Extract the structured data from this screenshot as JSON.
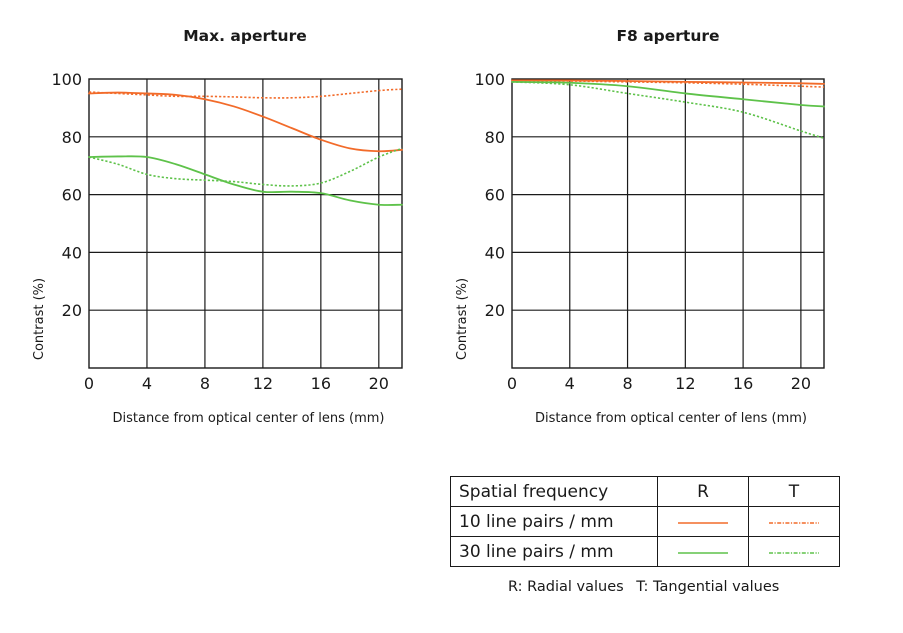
{
  "colors": {
    "orange": "#f26b2a",
    "green": "#5ec24a",
    "axis": "#1a1a1a"
  },
  "chart_data": [
    {
      "type": "line",
      "title": "Max. aperture",
      "xlabel": "Distance from optical center of lens (mm)",
      "ylabel": "Contrast (%)",
      "xlim": [
        0,
        21.6
      ],
      "ylim": [
        0,
        100
      ],
      "xticks": [
        0,
        4,
        8,
        12,
        16,
        20
      ],
      "yticks": [
        20,
        40,
        60,
        80,
        100
      ],
      "grid": true,
      "series": [
        {
          "name": "10 line pairs / mm R",
          "color": "orange",
          "dash": "solid",
          "x": [
            0,
            2,
            4,
            6,
            8,
            10,
            12,
            14,
            16,
            18,
            20,
            21.6
          ],
          "y": [
            95,
            95.3,
            95,
            94.5,
            93,
            90.5,
            87,
            83,
            79,
            76,
            75,
            75.5
          ]
        },
        {
          "name": "10 line pairs / mm T",
          "color": "orange",
          "dash": "dotted",
          "x": [
            0,
            2,
            4,
            6,
            8,
            10,
            12,
            14,
            16,
            18,
            20,
            21.6
          ],
          "y": [
            95.5,
            95,
            94.5,
            94,
            94,
            93.8,
            93.5,
            93.5,
            94,
            95,
            96,
            96.5
          ]
        },
        {
          "name": "30 line pairs / mm R",
          "color": "green",
          "dash": "solid",
          "x": [
            0,
            2,
            4,
            6,
            8,
            10,
            12,
            14,
            16,
            18,
            20,
            21.6
          ],
          "y": [
            73,
            73.2,
            73,
            70.5,
            67,
            63.5,
            61,
            61,
            60.5,
            58,
            56.5,
            56.5
          ]
        },
        {
          "name": "30 line pairs / mm T",
          "color": "green",
          "dash": "dotted",
          "x": [
            0,
            2,
            4,
            6,
            8,
            10,
            12,
            14,
            16,
            18,
            20,
            21.6
          ],
          "y": [
            73,
            70.5,
            67,
            65.5,
            65,
            64.5,
            63.5,
            63,
            64,
            68,
            73,
            76
          ]
        }
      ]
    },
    {
      "type": "line",
      "title": "F8 aperture",
      "xlabel": "Distance from optical center of lens (mm)",
      "ylabel": "Contrast (%)",
      "xlim": [
        0,
        21.6
      ],
      "ylim": [
        0,
        100
      ],
      "xticks": [
        0,
        4,
        8,
        12,
        16,
        20
      ],
      "yticks": [
        20,
        40,
        60,
        80,
        100
      ],
      "grid": true,
      "series": [
        {
          "name": "10 line pairs / mm R",
          "color": "orange",
          "dash": "solid",
          "x": [
            0,
            4,
            8,
            12,
            16,
            20,
            21.6
          ],
          "y": [
            99.5,
            99.5,
            99.3,
            99,
            98.8,
            98.5,
            98.3
          ]
        },
        {
          "name": "10 line pairs / mm T",
          "color": "orange",
          "dash": "dotted",
          "x": [
            0,
            4,
            8,
            12,
            16,
            20,
            21.6
          ],
          "y": [
            99.5,
            99.3,
            99,
            98.7,
            98.2,
            97.5,
            97.2
          ]
        },
        {
          "name": "30 line pairs / mm R",
          "color": "green",
          "dash": "solid",
          "x": [
            0,
            4,
            8,
            12,
            16,
            20,
            21.6
          ],
          "y": [
            99,
            98.7,
            97.5,
            95,
            93,
            91,
            90.5
          ]
        },
        {
          "name": "30 line pairs / mm T",
          "color": "green",
          "dash": "dotted",
          "x": [
            0,
            4,
            8,
            12,
            16,
            20,
            21.6
          ],
          "y": [
            99,
            98,
            95,
            92,
            88.5,
            82,
            79.5
          ]
        }
      ]
    }
  ],
  "legend": {
    "header": {
      "label": "Spatial frequency",
      "r": "R",
      "t": "T"
    },
    "rows": [
      {
        "label": "10 line pairs / mm",
        "color": "orange"
      },
      {
        "label": "30 line pairs / mm",
        "color": "green"
      }
    ],
    "footnote": {
      "radial": "R: Radial values",
      "tangential": "T: Tangential values"
    }
  }
}
